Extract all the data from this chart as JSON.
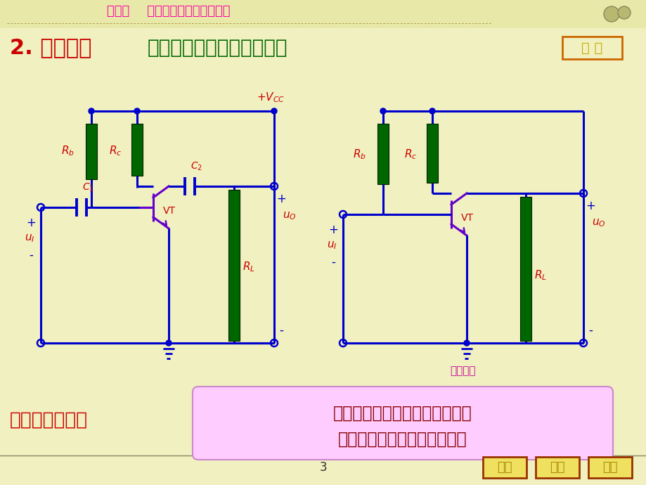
{
  "bg_color": "#f0f0c0",
  "title_text": "第三节    放大电路的基本分析方法",
  "title_color": "#ff00aa",
  "heading1": "2. 交流通路",
  "heading1_color": "#cc0000",
  "heading2": "用于放大电路的动态分析。",
  "heading2_color": "#006600",
  "donghua_text": "动 画",
  "section_label": "交流通路",
  "bottom_label": "在交流通路中：",
  "bottom_text1": "大电容和理想电压源相当于短路",
  "bottom_text2": "电感和理想电流源相当于开路",
  "page_num": "3",
  "nav_buttons": [
    "上页",
    "下页",
    "首页"
  ],
  "circuit_blue": "#0000cc",
  "resistor_green": "#006600",
  "label_red": "#cc0000",
  "transistor_purple": "#6600cc",
  "bottom_box_fill": "#ffccff",
  "bottom_box_edge": "#cc88cc",
  "nav_box_fill": "#f0e060",
  "nav_box_edge": "#993300"
}
